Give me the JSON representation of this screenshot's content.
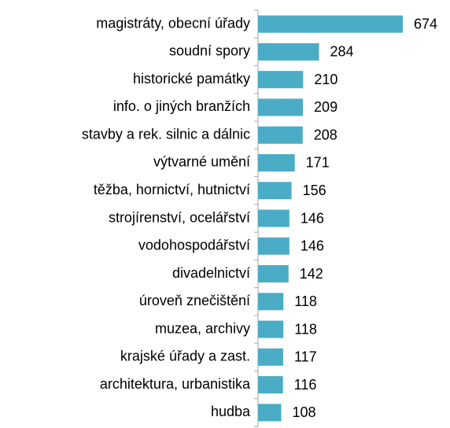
{
  "chart_data": {
    "type": "bar",
    "orientation": "horizontal",
    "color": "#4bacc6",
    "categories": [
      "magistráty, obecní úřady",
      "soudní spory",
      "historické památky",
      "info. o jiných branžích",
      "stavby a rek. silnic a dálnic",
      "výtvarné umění",
      "těžba, hornictví, hutnictví",
      "strojírenství, ocelářství",
      "vodohospodářství",
      "divadelnictví",
      "úroveň znečištění",
      "muzea, archivy",
      "krajské úřady a zast.",
      "architektura, urbanistika",
      "hudba"
    ],
    "values": [
      674,
      284,
      210,
      209,
      208,
      171,
      156,
      146,
      146,
      142,
      118,
      118,
      117,
      116,
      108
    ]
  }
}
